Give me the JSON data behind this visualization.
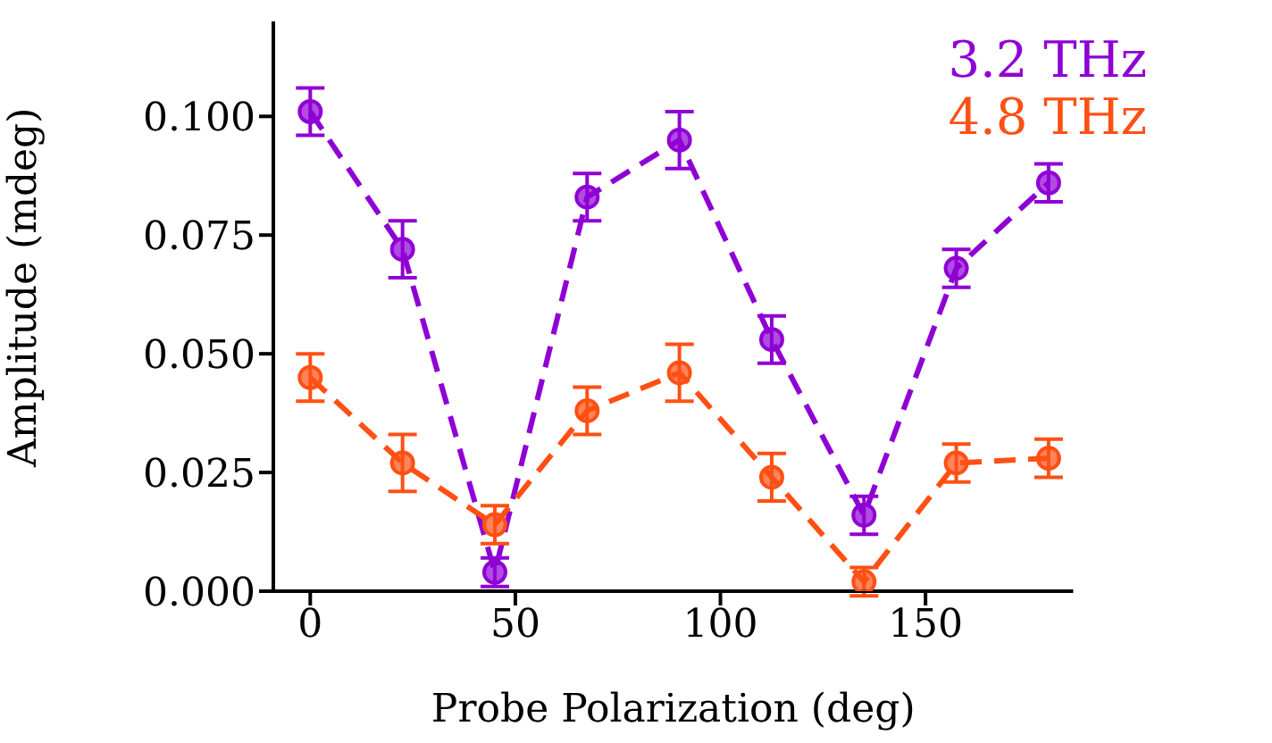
{
  "chart_data": {
    "type": "line",
    "xlabel": "Probe Polarization (deg)",
    "ylabel": "Amplitude (mdeg)",
    "x": [
      0,
      22.5,
      45,
      67.5,
      90,
      112.5,
      135,
      157.5,
      180
    ],
    "series": [
      {
        "name": "3.2 THz",
        "color": "#8f00d4",
        "values": [
          0.101,
          0.072,
          0.004,
          0.083,
          0.095,
          0.053,
          0.016,
          0.068,
          0.086
        ],
        "errors": [
          0.005,
          0.006,
          0.003,
          0.005,
          0.006,
          0.005,
          0.004,
          0.004,
          0.004
        ]
      },
      {
        "name": "4.8 THz",
        "color": "#ff5014",
        "values": [
          0.045,
          0.027,
          0.014,
          0.038,
          0.046,
          0.024,
          0.002,
          0.027,
          0.028
        ],
        "errors": [
          0.005,
          0.006,
          0.004,
          0.005,
          0.006,
          0.005,
          0.003,
          0.004,
          0.004
        ]
      }
    ],
    "xlim": [
      -9,
      186
    ],
    "xticks": [
      0,
      50,
      100,
      150
    ],
    "ylim": [
      0,
      0.12
    ],
    "yticks": [
      {
        "value": 0,
        "label": "0.000"
      },
      0.025,
      {
        "value": 0.05,
        "label": "0.050"
      },
      0.075,
      {
        "value": 0.1,
        "label": "0.100"
      }
    ],
    "marker": "circle",
    "line_style": "dashed",
    "legend": "top right",
    "grid": false
  }
}
